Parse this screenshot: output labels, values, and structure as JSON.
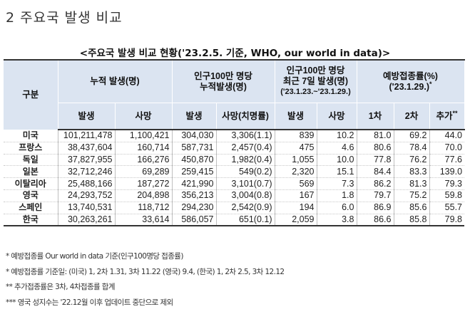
{
  "section_title": "2 주요국 발생 비교",
  "table": {
    "caption": "<주요국 발생 비교 현황('23.2.5. 기준, WHO, our world in data)>",
    "header": {
      "category": "구분",
      "cumulative": "누적 발생(명)",
      "per_million_line1": "인구100만 명당",
      "per_million_line2": "누적발생(명)",
      "recent_line1": "인구100만 명당",
      "recent_line2": "최근 7일 발생(명)",
      "recent_line3": "('23.1.23.~'23.1.29.)",
      "vacc_line1": "예방접종률(%)",
      "vacc_line2": "('23.1.29.)",
      "vacc_mark": "*"
    },
    "subheader": {
      "cases": "발생",
      "deaths": "사망",
      "pm_cases": "발생",
      "pm_deaths": "사망(치명률)",
      "recent_cases": "발생",
      "recent_deaths": "사망",
      "dose1": "1차",
      "dose2": "2차",
      "booster": "추가",
      "booster_mark": "**"
    },
    "rows": [
      {
        "country": "미국",
        "cases": "101,211,478",
        "deaths": "1,100,421",
        "pm_cases": "304,030",
        "pm_deaths": "3,306(1.1)",
        "recent_cases": "839",
        "recent_deaths": "10.2",
        "dose1": "81.0",
        "dose2": "69.2",
        "booster": "44.0"
      },
      {
        "country": "프랑스",
        "cases": "38,437,604",
        "deaths": "160,714",
        "pm_cases": "587,731",
        "pm_deaths": "2,457(0.4)",
        "recent_cases": "475",
        "recent_deaths": "4.6",
        "dose1": "80.6",
        "dose2": "78.4",
        "booster": "70.0"
      },
      {
        "country": "독일",
        "cases": "37,827,955",
        "deaths": "166,276",
        "pm_cases": "450,870",
        "pm_deaths": "1,982(0.4)",
        "recent_cases": "1,055",
        "recent_deaths": "10.0",
        "dose1": "77.8",
        "dose2": "76.2",
        "booster": "77.6"
      },
      {
        "country": "일본",
        "cases": "32,712,246",
        "deaths": "69,289",
        "pm_cases": "259,415",
        "pm_deaths": "549(0.2)",
        "recent_cases": "2,320",
        "recent_deaths": "15.1",
        "dose1": "84.4",
        "dose2": "83.3",
        "booster": "139.0"
      },
      {
        "country": "이탈리아",
        "cases": "25,488,166",
        "deaths": "187,272",
        "pm_cases": "421,990",
        "pm_deaths": "3,101(0.7)",
        "recent_cases": "569",
        "recent_deaths": "7.3",
        "dose1": "86.2",
        "dose2": "81.3",
        "booster": "79.3"
      },
      {
        "country": "영국",
        "cases": "24,293,752",
        "deaths": "204,898",
        "pm_cases": "356,213",
        "pm_deaths": "3,004(0.8)",
        "recent_cases": "167",
        "recent_deaths": "1.8",
        "dose1": "79.7",
        "dose2": "75.2",
        "booster": "59.8"
      },
      {
        "country": "스페인",
        "cases": "13,740,531",
        "deaths": "118,712",
        "pm_cases": "294,230",
        "pm_deaths": "2,542(0.9)",
        "recent_cases": "194",
        "recent_deaths": "6.0",
        "dose1": "86.9",
        "dose2": "85.6",
        "booster": "55.7"
      },
      {
        "country": "한국",
        "cases": "30,263,261",
        "deaths": "33,614",
        "pm_cases": "586,057",
        "pm_deaths": "651(0.1)",
        "recent_cases": "2,059",
        "recent_deaths": "3.8",
        "dose1": "86.6",
        "dose2": "85.8",
        "booster": "79.8"
      }
    ]
  },
  "notes": [
    "* 예방접종률 Our world in data 기준(인구100명당 접종률)",
    "* 예방접종률 기준일: (미국) 1, 2차 1.31, 3차 11.22 (영국) 9.4, (한국) 1, 2차 2.5, 3차 12.12",
    "** 추가접종률은 3차, 4차접종률 합계",
    "*** 영국 성지수는 '22.12월 이후 업데이트 중단으로 제외"
  ]
}
